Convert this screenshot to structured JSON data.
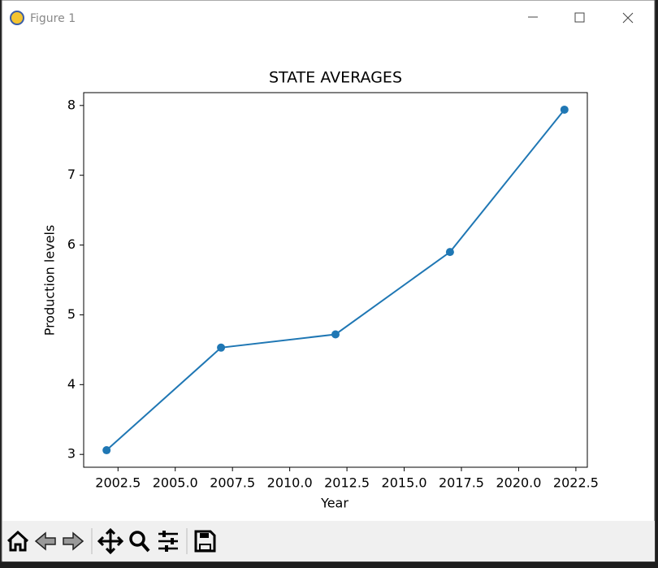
{
  "window": {
    "title": "Figure 1"
  },
  "chart_data": {
    "type": "line",
    "title": "STATE AVERAGES",
    "x_label": "Year",
    "y_label": "Production levels",
    "x": [
      2002,
      2007,
      2012,
      2017,
      2022
    ],
    "values": [
      3.06,
      4.53,
      4.72,
      5.9,
      7.94
    ],
    "color": "#1f77b4",
    "xlim": [
      2001,
      2023
    ],
    "xticks": [
      2002.5,
      {
        "value": 2005,
        "label": "2005.0"
      },
      2007.5,
      {
        "value": 2010,
        "label": "2010.0"
      },
      2012.5,
      {
        "value": 2015,
        "label": "2015.0"
      },
      2017.5,
      {
        "value": 2020,
        "label": "2020.0"
      },
      2022.5
    ],
    "ylim": [
      2.816,
      8.184
    ],
    "yticks": [
      3,
      4,
      5,
      6,
      7,
      8
    ],
    "markers": true
  }
}
